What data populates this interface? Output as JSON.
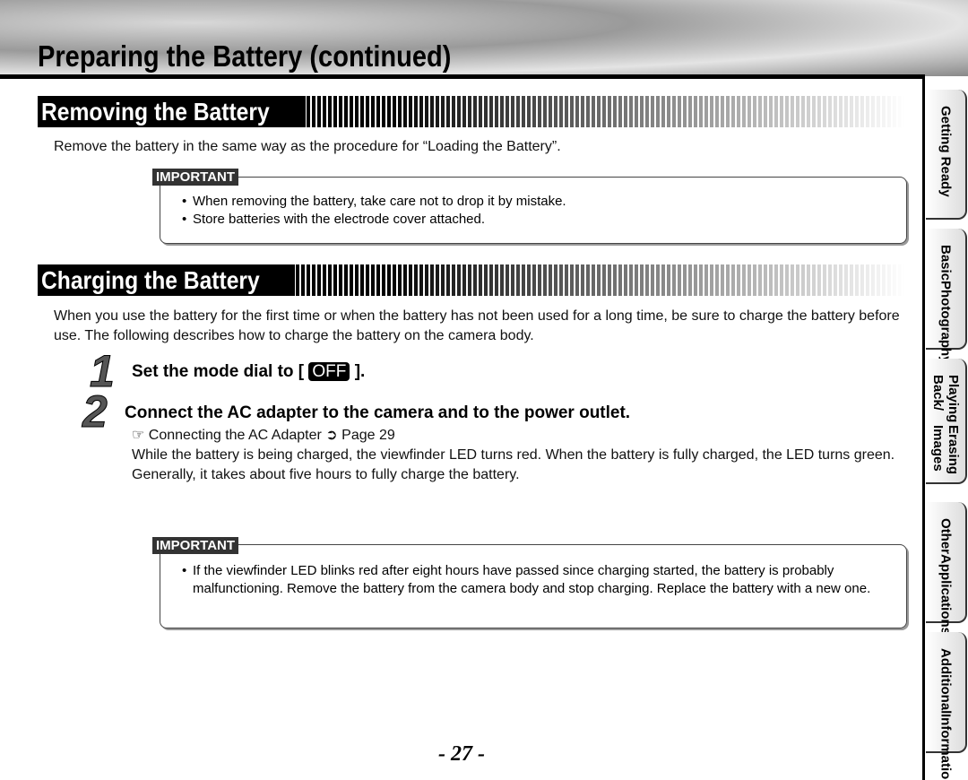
{
  "header": {
    "title": "Preparing the Battery (continued)"
  },
  "removing": {
    "heading": "Removing the Battery",
    "intro": "Remove the battery in the same way as the procedure for “Loading the Battery”.",
    "important": {
      "label": "IMPORTANT",
      "items": [
        "When removing the battery, take care not to drop it by mistake.",
        "Store batteries with the electrode cover attached."
      ]
    }
  },
  "charging": {
    "heading": "Charging the Battery",
    "intro": "When you use the battery for the first time or when the battery has not been used for a long time, be sure to charge the battery before use. The following describes how to charge the battery on the camera body.",
    "steps": [
      {
        "number": "1",
        "text_before": "Set the mode dial to [",
        "badge": "OFF",
        "text_after": "]."
      },
      {
        "number": "2",
        "text": "Connect the AC adapter to the camera and to the power outlet.",
        "ref": {
          "icon": "☞",
          "text": "Connecting the AC Adapter",
          "arrow": "➲",
          "page": "Page 29"
        },
        "paragraphs": [
          "While the battery is being charged, the viewfinder LED turns red. When the battery is fully charged, the LED turns green.",
          "Generally, it takes about five hours to fully charge the battery."
        ]
      }
    ],
    "important": {
      "label": "IMPORTANT",
      "items": [
        "If the viewfinder LED blinks red after eight hours have passed since charging started, the battery is probably malfunctioning. Remove the battery from the camera body and stop charging. Replace the battery with a new one."
      ]
    }
  },
  "side_tabs": [
    [
      "Getting Ready"
    ],
    [
      "Basic",
      "Photography"
    ],
    [
      "Playing Back/",
      "Erasing Images"
    ],
    [
      "Other",
      "Applications"
    ],
    [
      "Additional",
      "Information"
    ]
  ],
  "footer": {
    "page_number": "- 27 -"
  }
}
